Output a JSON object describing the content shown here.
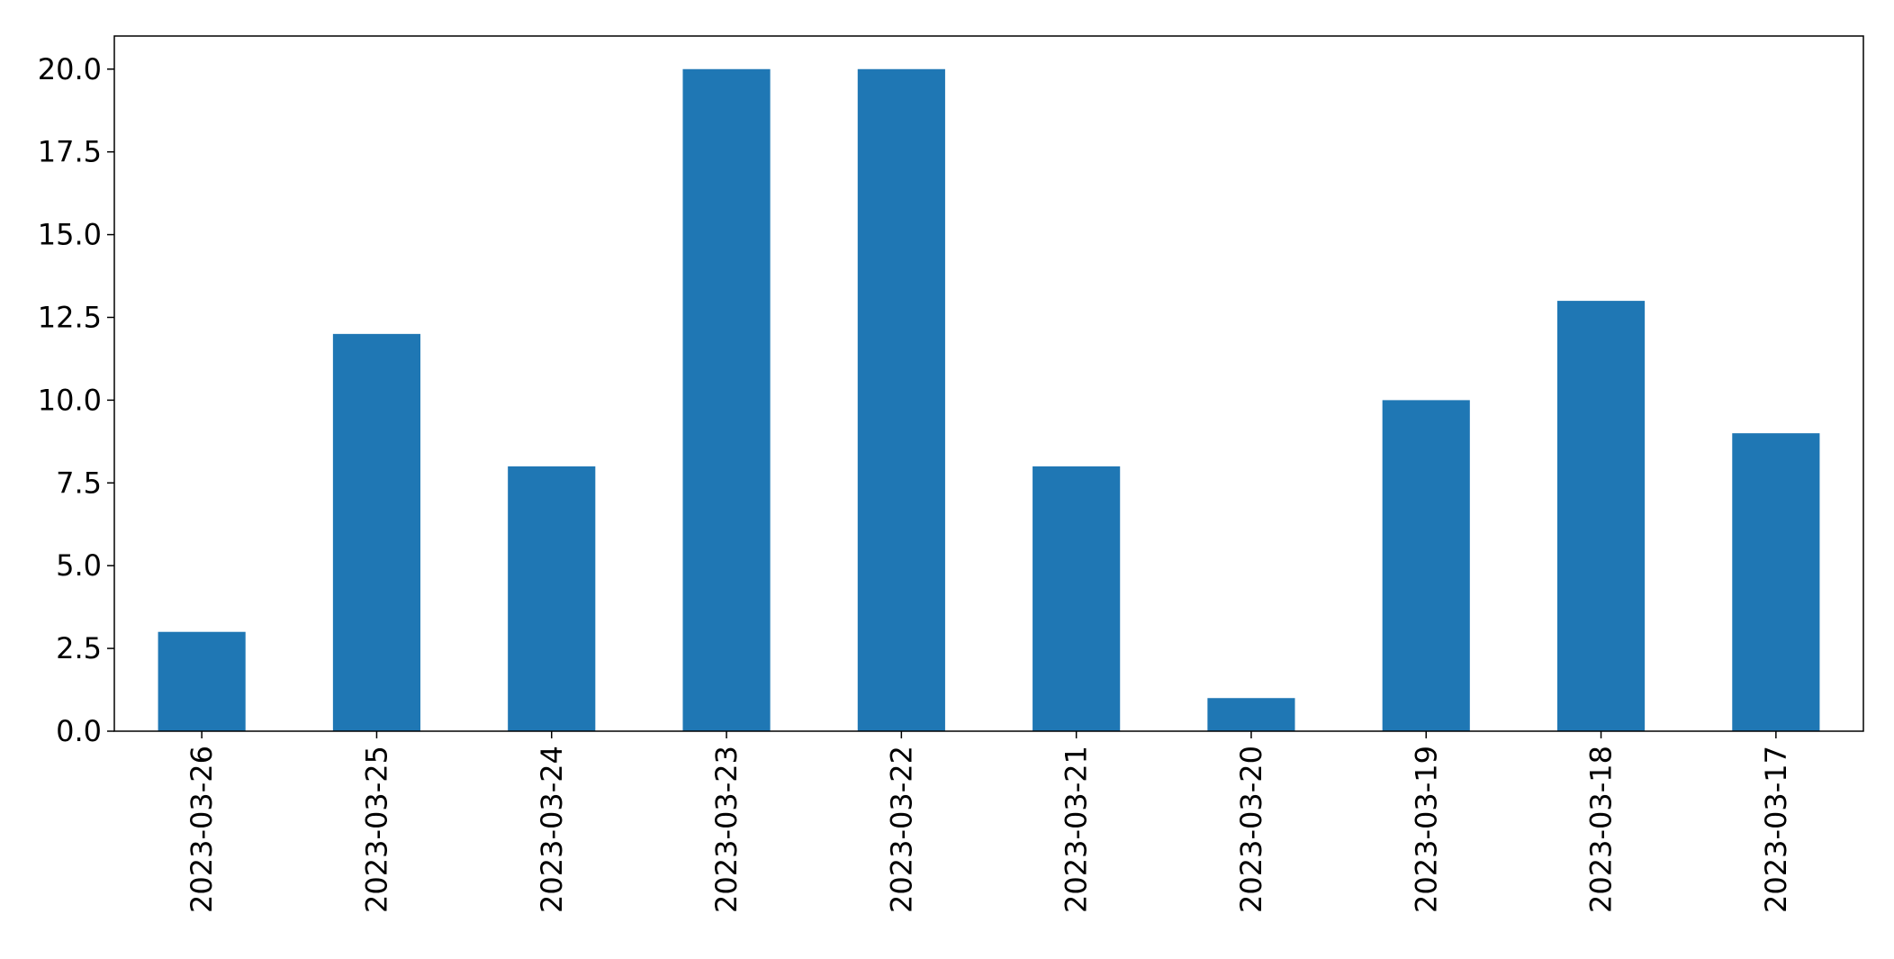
{
  "chart_data": {
    "type": "bar",
    "title": "",
    "xlabel": "",
    "ylabel": "",
    "categories": [
      "2023-03-26",
      "2023-03-25",
      "2023-03-24",
      "2023-03-23",
      "2023-03-22",
      "2023-03-21",
      "2023-03-20",
      "2023-03-19",
      "2023-03-18",
      "2023-03-17"
    ],
    "values": [
      3,
      12,
      8,
      20,
      20,
      8,
      1,
      10,
      13,
      9
    ],
    "ylim": [
      0,
      21
    ],
    "yticks": [
      "0.0",
      "2.5",
      "5.0",
      "7.5",
      "10.0",
      "12.5",
      "15.0",
      "17.5",
      "20.0"
    ],
    "grid": false,
    "legend": "none",
    "bar_color": "#1f77b4"
  }
}
